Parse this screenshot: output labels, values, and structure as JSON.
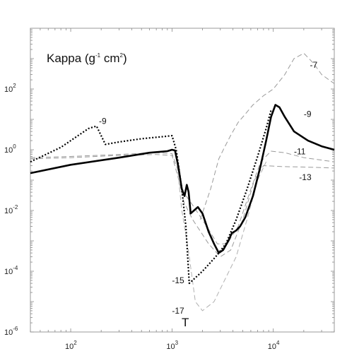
{
  "chart_data": {
    "type": "line",
    "title": "",
    "ylabel": "Kappa (g",
    "ylabel_sup1": "-1",
    "ylabel_mid": " cm",
    "ylabel_sup2": "2",
    "ylabel_end": ")",
    "xlabel": "T",
    "xscale": "log",
    "yscale": "log",
    "xlim": [
      40,
      40000
    ],
    "ylim": [
      1e-06,
      10000
    ],
    "grid": false,
    "legend": "none",
    "x_ticks": [
      {
        "value": 100,
        "base": "10",
        "exp": "2"
      },
      {
        "value": 1000,
        "base": "10",
        "exp": "3"
      },
      {
        "value": 10000,
        "base": "10",
        "exp": "4"
      }
    ],
    "y_ticks": [
      {
        "value": 1e-06,
        "base": "10",
        "exp": "-6"
      },
      {
        "value": 0.0001,
        "base": "10",
        "exp": "-4"
      },
      {
        "value": 0.01,
        "base": "10",
        "exp": "-2"
      },
      {
        "value": 1,
        "base": "10",
        "exp": "0"
      },
      {
        "value": 100,
        "base": "10",
        "exp": "2"
      }
    ],
    "annotations": [
      {
        "text": "-7",
        "x": 23000,
        "y": 500
      },
      {
        "text": "-9",
        "x": 190,
        "y": 7
      },
      {
        "text": "-9",
        "x": 20000,
        "y": 12
      },
      {
        "text": "-11",
        "x": 16000,
        "y": 0.7
      },
      {
        "text": "-13",
        "x": 18000,
        "y": 0.1
      },
      {
        "text": "-15",
        "x": 1000,
        "y": 4e-05
      },
      {
        "text": "-17",
        "x": 1000,
        "y": 4e-06
      }
    ],
    "series": [
      {
        "label": "-9",
        "style": "solid-thick",
        "color": "#000000",
        "points": [
          [
            40,
            0.17
          ],
          [
            100,
            0.32
          ],
          [
            300,
            0.55
          ],
          [
            600,
            0.8
          ],
          [
            900,
            0.9
          ],
          [
            1000,
            1.0
          ],
          [
            1070,
            0.95
          ],
          [
            1150,
            0.3
          ],
          [
            1250,
            0.05
          ],
          [
            1330,
            0.03
          ],
          [
            1400,
            0.07
          ],
          [
            1460,
            0.04
          ],
          [
            1530,
            0.008
          ],
          [
            1650,
            0.01
          ],
          [
            1800,
            0.013
          ],
          [
            2000,
            0.008
          ],
          [
            2300,
            0.002
          ],
          [
            2600,
            0.0008
          ],
          [
            2900,
            0.0004
          ],
          [
            3200,
            0.0005
          ],
          [
            3600,
            0.001
          ],
          [
            3900,
            0.0018
          ],
          [
            4300,
            0.0022
          ],
          [
            4700,
            0.003
          ],
          [
            5300,
            0.006
          ],
          [
            6300,
            0.03
          ],
          [
            7500,
            0.3
          ],
          [
            8500,
            2
          ],
          [
            9500,
            12
          ],
          [
            10500,
            30
          ],
          [
            11500,
            25
          ],
          [
            13000,
            12
          ],
          [
            16000,
            4
          ],
          [
            22000,
            2
          ],
          [
            30000,
            1.3
          ],
          [
            40000,
            1
          ]
        ]
      },
      {
        "label": "-15",
        "style": "dotted",
        "color": "#000000",
        "points": [
          [
            40,
            0.4
          ],
          [
            80,
            1.2
          ],
          [
            150,
            5
          ],
          [
            180,
            6
          ],
          [
            220,
            1.5
          ],
          [
            300,
            1.8
          ],
          [
            500,
            2.3
          ],
          [
            900,
            2.8
          ],
          [
            1000,
            2.9
          ],
          [
            1100,
            1.0
          ],
          [
            1250,
            0.05
          ],
          [
            1370,
            0.003
          ],
          [
            1480,
            4e-05
          ],
          [
            2000,
            0.0001
          ],
          [
            2700,
            0.0003
          ],
          [
            3400,
            0.0008
          ],
          [
            4300,
            0.005
          ],
          [
            5500,
            0.05
          ],
          [
            7000,
            0.6
          ],
          [
            8500,
            5
          ],
          [
            9500,
            20
          ]
        ]
      },
      {
        "label": "-7",
        "style": "dashed-gray",
        "color": "#9a9a9a",
        "points": [
          [
            1900,
            0.005
          ],
          [
            2400,
            0.05
          ],
          [
            2900,
            0.5
          ],
          [
            3300,
            1.2
          ],
          [
            3800,
            3
          ],
          [
            4500,
            8
          ],
          [
            5300,
            15
          ],
          [
            6300,
            30
          ],
          [
            8000,
            60
          ],
          [
            10000,
            100
          ],
          [
            13000,
            300
          ],
          [
            16000,
            1000
          ],
          [
            20000,
            1500
          ],
          [
            25000,
            700
          ],
          [
            30000,
            300
          ],
          [
            40000,
            150
          ]
        ]
      },
      {
        "label": "-11",
        "style": "dashed-gray",
        "color": "#9a9a9a",
        "points": [
          [
            40,
            0.55
          ],
          [
            100,
            0.6
          ],
          [
            300,
            0.7
          ],
          [
            700,
            0.8
          ],
          [
            1000,
            0.75
          ],
          [
            1150,
            0.2
          ],
          [
            1300,
            0.04
          ],
          [
            1600,
            0.015
          ],
          [
            2200,
            0.003
          ],
          [
            2800,
            0.0008
          ],
          [
            3500,
            0.0008
          ],
          [
            4500,
            0.003
          ],
          [
            6000,
            0.05
          ],
          [
            7500,
            0.4
          ],
          [
            9500,
            0.9
          ],
          [
            13000,
            0.8
          ],
          [
            20000,
            0.55
          ],
          [
            40000,
            0.4
          ]
        ]
      },
      {
        "label": "-13",
        "style": "dashed-gray",
        "color": "#9a9a9a",
        "points": [
          [
            40,
            0.5
          ],
          [
            100,
            0.55
          ],
          [
            300,
            0.65
          ],
          [
            700,
            0.7
          ],
          [
            1000,
            0.65
          ],
          [
            1150,
            0.12
          ],
          [
            1300,
            0.02
          ],
          [
            1600,
            0.005
          ],
          [
            2300,
            0.0008
          ],
          [
            3000,
            0.0003
          ],
          [
            3800,
            0.0005
          ],
          [
            5000,
            0.005
          ],
          [
            6500,
            0.1
          ],
          [
            8000,
            0.3
          ],
          [
            12000,
            0.28
          ],
          [
            20000,
            0.27
          ],
          [
            40000,
            0.25
          ]
        ]
      },
      {
        "label": "-17",
        "style": "dashed-gray",
        "color": "#b0b0b0",
        "points": [
          [
            1100,
            0.6
          ],
          [
            1250,
            0.01
          ],
          [
            1450,
            0.0005
          ],
          [
            1700,
            1e-05
          ],
          [
            2000,
            5e-06
          ],
          [
            2600,
            1e-05
          ],
          [
            3300,
            5e-05
          ],
          [
            4300,
            0.0003
          ],
          [
            5500,
            0.005
          ],
          [
            7000,
            0.1
          ],
          [
            8500,
            0.4
          ]
        ]
      }
    ]
  }
}
